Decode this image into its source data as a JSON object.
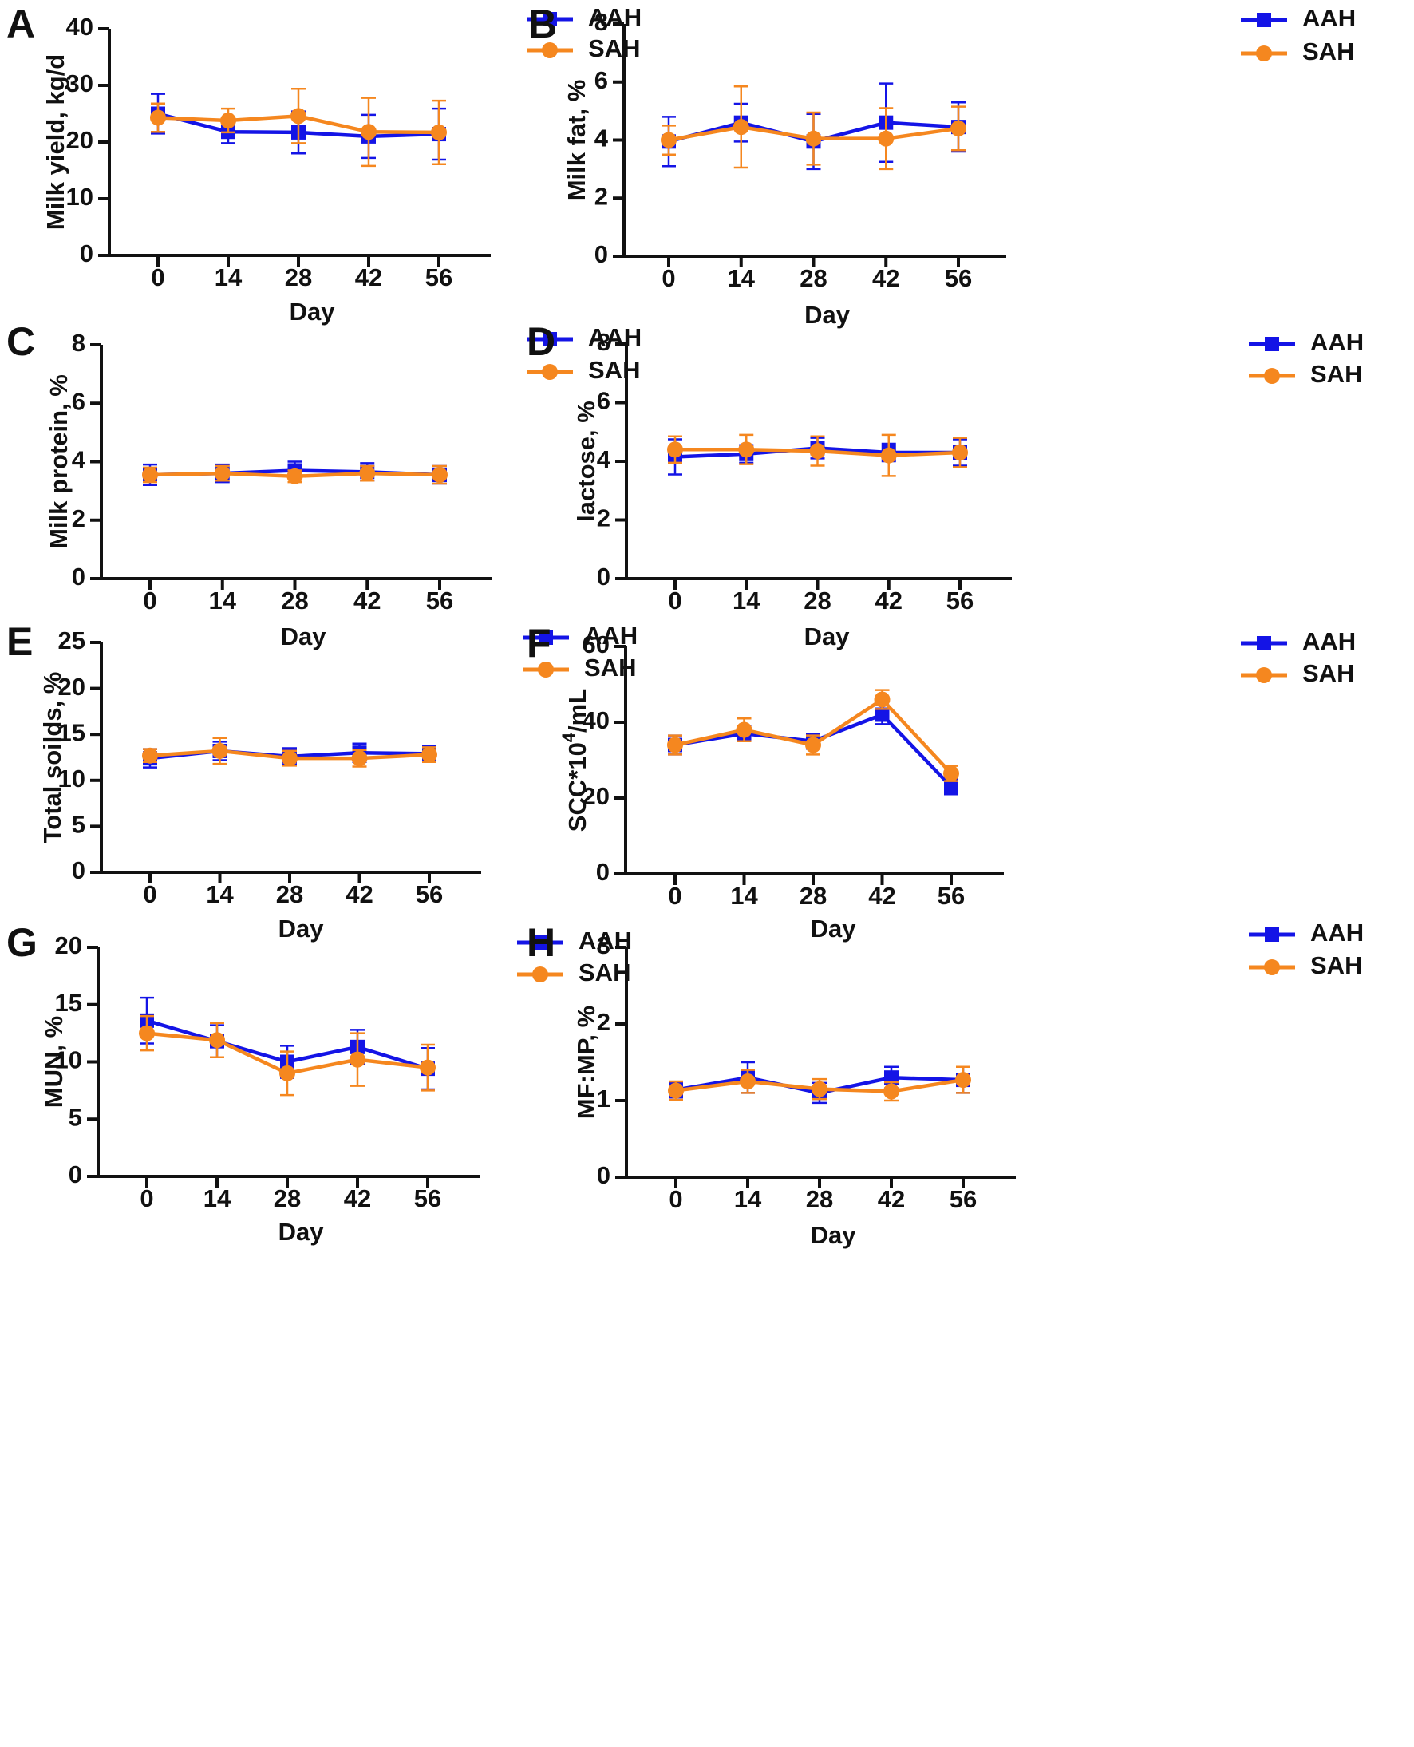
{
  "figure": {
    "series_names": [
      "AAH",
      "SAH"
    ],
    "colors": {
      "AAH": "#1414e6",
      "SAH": "#f5871f",
      "axis": "#111111"
    },
    "x_label": "Day"
  },
  "chart_data": [
    {
      "panel": "A",
      "type": "line",
      "title": "",
      "xlabel": "Day",
      "ylabel": "Milk yield, kg/d",
      "x": [
        0,
        14,
        28,
        42,
        56
      ],
      "ylim": [
        0,
        40
      ],
      "yticks": [
        0,
        10,
        20,
        30,
        40
      ],
      "series": [
        {
          "name": "AAH",
          "values": [
            25.0,
            21.8,
            21.7,
            21.0,
            21.4
          ],
          "errors": [
            3.5,
            2.0,
            3.7,
            3.8,
            4.5
          ]
        },
        {
          "name": "SAH",
          "values": [
            24.3,
            23.8,
            24.6,
            21.8,
            21.7
          ],
          "errors": [
            2.5,
            2.1,
            4.8,
            6.0,
            5.6
          ]
        }
      ]
    },
    {
      "panel": "B",
      "type": "line",
      "title": "",
      "xlabel": "Day",
      "ylabel": "Milk fat, %",
      "x": [
        0,
        14,
        28,
        42,
        56
      ],
      "ylim": [
        0,
        8
      ],
      "yticks": [
        0,
        2,
        4,
        6,
        8
      ],
      "series": [
        {
          "name": "AAH",
          "values": [
            3.95,
            4.6,
            3.95,
            4.6,
            4.45
          ],
          "errors": [
            0.85,
            0.65,
            0.95,
            1.35,
            0.85
          ]
        },
        {
          "name": "SAH",
          "values": [
            4.0,
            4.45,
            4.05,
            4.05,
            4.4
          ],
          "errors": [
            0.5,
            1.4,
            0.9,
            1.05,
            0.75
          ]
        }
      ]
    },
    {
      "panel": "C",
      "type": "line",
      "title": "",
      "xlabel": "Day",
      "ylabel": "Milk protein, %",
      "x": [
        0,
        14,
        28,
        42,
        56
      ],
      "ylim": [
        0,
        8
      ],
      "yticks": [
        0,
        2,
        4,
        6,
        8
      ],
      "series": [
        {
          "name": "AAH",
          "values": [
            3.55,
            3.6,
            3.7,
            3.65,
            3.55
          ],
          "errors": [
            0.35,
            0.3,
            0.3,
            0.3,
            0.3
          ]
        },
        {
          "name": "SAH",
          "values": [
            3.55,
            3.6,
            3.5,
            3.6,
            3.55
          ],
          "errors": [
            0.25,
            0.25,
            0.2,
            0.25,
            0.3
          ]
        }
      ]
    },
    {
      "panel": "D",
      "type": "line",
      "title": "",
      "xlabel": "Day",
      "ylabel": "lactose, %",
      "x": [
        0,
        14,
        28,
        42,
        56
      ],
      "ylim": [
        0,
        8
      ],
      "yticks": [
        0,
        2,
        4,
        6,
        8
      ],
      "series": [
        {
          "name": "AAH",
          "values": [
            4.15,
            4.25,
            4.45,
            4.3,
            4.3
          ],
          "errors": [
            0.6,
            0.3,
            0.35,
            0.3,
            0.45
          ]
        },
        {
          "name": "SAH",
          "values": [
            4.4,
            4.4,
            4.35,
            4.2,
            4.3
          ],
          "errors": [
            0.45,
            0.5,
            0.5,
            0.7,
            0.5
          ]
        }
      ]
    },
    {
      "panel": "E",
      "type": "line",
      "title": "",
      "xlabel": "Day",
      "ylabel": "Total soilds, %",
      "x": [
        0,
        14,
        28,
        42,
        56
      ],
      "ylim": [
        0,
        25
      ],
      "yticks": [
        0,
        5,
        10,
        15,
        20,
        25
      ],
      "series": [
        {
          "name": "AAH",
          "values": [
            12.4,
            13.2,
            12.6,
            13.0,
            12.9
          ],
          "errors": [
            1.0,
            1.0,
            0.9,
            1.0,
            0.8
          ]
        },
        {
          "name": "SAH",
          "values": [
            12.7,
            13.2,
            12.4,
            12.4,
            12.8
          ],
          "errors": [
            0.7,
            1.4,
            0.8,
            0.9,
            0.8
          ]
        }
      ]
    },
    {
      "panel": "F",
      "type": "line",
      "title": "",
      "xlabel": "Day",
      "ylabel_main": "SCC*10",
      "ylabel_sup": "4",
      "ylabel_tail": "/mL",
      "x": [
        0,
        14,
        28,
        42,
        56
      ],
      "ylim": [
        0,
        60
      ],
      "yticks": [
        0,
        20,
        40,
        60
      ],
      "series": [
        {
          "name": "AAH",
          "values": [
            34.0,
            37.0,
            35.0,
            42.0,
            23.0
          ],
          "errors": [
            2.5,
            2.0,
            2.0,
            2.5,
            2.0
          ]
        },
        {
          "name": "SAH",
          "values": [
            34.0,
            38.0,
            34.0,
            46.0,
            26.5
          ],
          "errors": [
            2.5,
            3.0,
            2.5,
            2.5,
            2.0
          ]
        }
      ]
    },
    {
      "panel": "G",
      "type": "line",
      "title": "",
      "xlabel": "Day",
      "ylabel": "MUN, %",
      "x": [
        0,
        14,
        28,
        42,
        56
      ],
      "ylim": [
        0,
        20
      ],
      "yticks": [
        0,
        5,
        10,
        15,
        20
      ],
      "series": [
        {
          "name": "AAH",
          "values": [
            13.6,
            11.8,
            10.0,
            11.3,
            9.4
          ],
          "errors": [
            2.0,
            1.4,
            1.4,
            1.5,
            1.8
          ]
        },
        {
          "name": "SAH",
          "values": [
            12.5,
            11.9,
            9.0,
            10.2,
            9.5
          ],
          "errors": [
            1.5,
            1.5,
            1.9,
            2.3,
            2.0
          ]
        }
      ]
    },
    {
      "panel": "H",
      "type": "line",
      "title": "",
      "xlabel": "Day",
      "ylabel": "MF:MP, %",
      "x": [
        0,
        14,
        28,
        42,
        56
      ],
      "ylim": [
        0,
        3
      ],
      "yticks": [
        0,
        1,
        2,
        3
      ],
      "series": [
        {
          "name": "AAH",
          "values": [
            1.14,
            1.3,
            1.1,
            1.3,
            1.27
          ],
          "errors": [
            0.1,
            0.2,
            0.13,
            0.14,
            0.17
          ]
        },
        {
          "name": "SAH",
          "values": [
            1.13,
            1.25,
            1.15,
            1.12,
            1.27
          ],
          "errors": [
            0.12,
            0.15,
            0.13,
            0.12,
            0.17
          ]
        }
      ]
    }
  ]
}
